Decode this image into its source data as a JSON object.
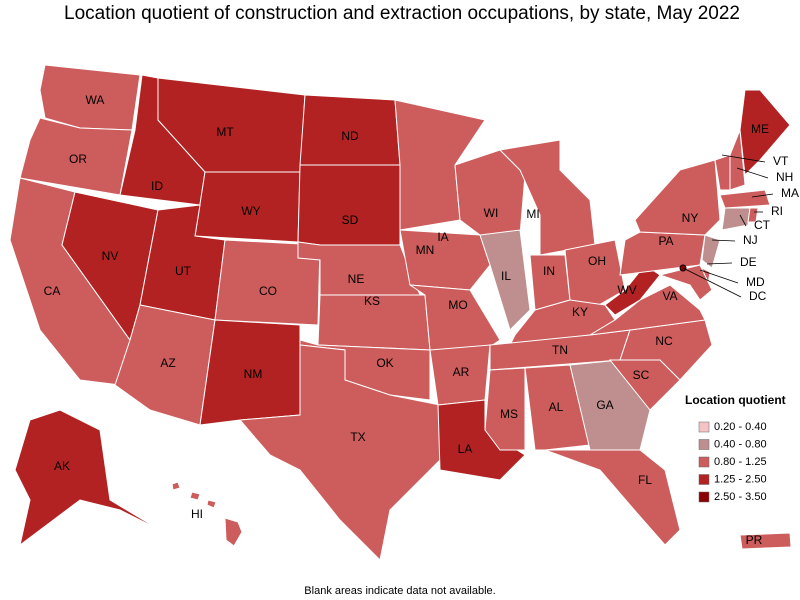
{
  "title": "Location quotient of construction and extraction occupations, by state, May 2022",
  "legend": {
    "title": "Location quotient",
    "items": [
      {
        "label": "0.20 - 0.40",
        "color": "#f4c4c4"
      },
      {
        "label": "0.40 - 0.80",
        "color": "#bf8f8f"
      },
      {
        "label": "0.80 - 1.25",
        "color": "#cd5c5c"
      },
      {
        "label": "1.25 - 2.50",
        "color": "#b22222"
      },
      {
        "label": "2.50 - 3.50",
        "color": "#8b0000"
      }
    ]
  },
  "states": [
    {
      "label": "WA",
      "color": "#cd5c5c"
    },
    {
      "label": "OR",
      "color": "#cd5c5c"
    },
    {
      "label": "CA",
      "color": "#cd5c5c"
    },
    {
      "label": "NV",
      "color": "#b22222"
    },
    {
      "label": "ID",
      "color": "#b22222"
    },
    {
      "label": "MT",
      "color": "#b22222"
    },
    {
      "label": "WY",
      "color": "#b22222"
    },
    {
      "label": "UT",
      "color": "#b22222"
    },
    {
      "label": "CO",
      "color": "#cd5c5c"
    },
    {
      "label": "AZ",
      "color": "#cd5c5c"
    },
    {
      "label": "NM",
      "color": "#b22222"
    },
    {
      "label": "ND",
      "color": "#b22222"
    },
    {
      "label": "SD",
      "color": "#b22222"
    },
    {
      "label": "NE",
      "color": "#cd5c5c"
    },
    {
      "label": "KS",
      "color": "#cd5c5c"
    },
    {
      "label": "OK",
      "color": "#cd5c5c"
    },
    {
      "label": "TX",
      "color": "#cd5c5c"
    },
    {
      "label": "MN",
      "color": "#cd5c5c"
    },
    {
      "label": "IA",
      "color": "#cd5c5c"
    },
    {
      "label": "MO",
      "color": "#cd5c5c"
    },
    {
      "label": "AR",
      "color": "#cd5c5c"
    },
    {
      "label": "LA",
      "color": "#b22222"
    },
    {
      "label": "WI",
      "color": "#cd5c5c"
    },
    {
      "label": "IL",
      "color": "#bf8f8f"
    },
    {
      "label": "MI",
      "color": "#cd5c5c"
    },
    {
      "label": "IN",
      "color": "#cd5c5c"
    },
    {
      "label": "OH",
      "color": "#cd5c5c"
    },
    {
      "label": "KY",
      "color": "#cd5c5c"
    },
    {
      "label": "TN",
      "color": "#cd5c5c"
    },
    {
      "label": "MS",
      "color": "#cd5c5c"
    },
    {
      "label": "AL",
      "color": "#cd5c5c"
    },
    {
      "label": "GA",
      "color": "#bf8f8f"
    },
    {
      "label": "FL",
      "color": "#cd5c5c"
    },
    {
      "label": "SC",
      "color": "#cd5c5c"
    },
    {
      "label": "NC",
      "color": "#cd5c5c"
    },
    {
      "label": "VA",
      "color": "#cd5c5c"
    },
    {
      "label": "WV",
      "color": "#b22222"
    },
    {
      "label": "PA",
      "color": "#cd5c5c"
    },
    {
      "label": "NY",
      "color": "#cd5c5c"
    },
    {
      "label": "NJ",
      "color": "#bf8f8f"
    },
    {
      "label": "DE",
      "color": "#cd5c5c"
    },
    {
      "label": "MD",
      "color": "#cd5c5c"
    },
    {
      "label": "VT",
      "color": "#cd5c5c"
    },
    {
      "label": "NH",
      "color": "#cd5c5c"
    },
    {
      "label": "ME",
      "color": "#b22222"
    },
    {
      "label": "MA",
      "color": "#cd5c5c"
    },
    {
      "label": "CT",
      "color": "#bf8f8f"
    },
    {
      "label": "RI",
      "color": "#cd5c5c"
    },
    {
      "label": "DC",
      "color": "#8b0000"
    },
    {
      "label": "AK",
      "color": "#b22222"
    },
    {
      "label": "HI",
      "color": "#cd5c5c"
    },
    {
      "label": "PR",
      "color": "#cd5c5c"
    }
  ],
  "note": "Blank areas indicate data not available."
}
